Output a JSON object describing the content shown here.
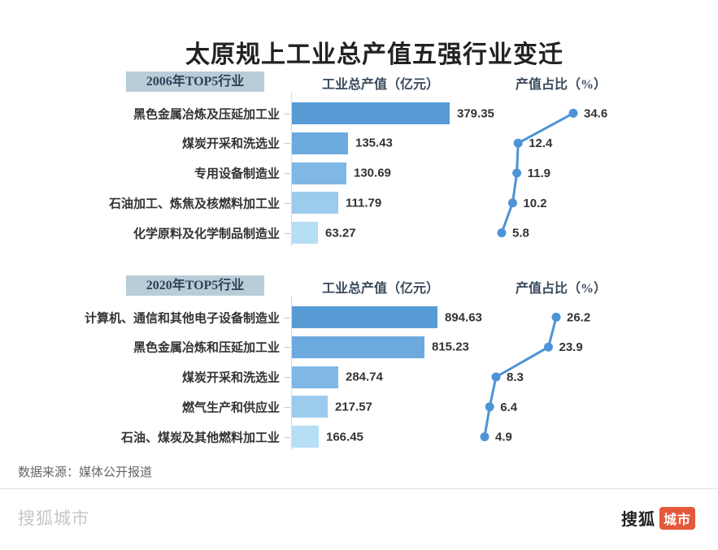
{
  "title": "太原规上工业总产值五强行业变迁",
  "columns": {
    "value": "工业总产值（亿元）",
    "share": "产值占比（%）"
  },
  "chart_data": [
    {
      "type": "bar",
      "group": "2006年TOP5行业",
      "value_axis_label": "工业总产值（亿元）",
      "share_axis_label": "产值占比（%）",
      "categories": [
        "黑色金属冶炼及压延加工业",
        "煤炭开采和洗选业",
        "专用设备制造业",
        "石油加工、炼焦及核燃料加工业",
        "化学原料及化学制品制造业"
      ],
      "values": [
        379.35,
        135.43,
        130.69,
        111.79,
        63.27
      ],
      "share_pct": [
        34.6,
        12.4,
        11.9,
        10.2,
        5.8
      ]
    },
    {
      "type": "bar",
      "group": "2020年TOP5行业",
      "value_axis_label": "工业总产值（亿元）",
      "share_axis_label": "产值占比（%）",
      "categories": [
        "计算机、通信和其他电子设备制造业",
        "黑色金属冶炼和压延加工业",
        "煤炭开采和洗选业",
        "燃气生产和供应业",
        "石油、煤炭及其他燃料加工业"
      ],
      "values": [
        894.63,
        815.23,
        284.74,
        217.57,
        166.45
      ],
      "share_pct": [
        26.2,
        23.9,
        8.3,
        6.4,
        4.9
      ]
    }
  ],
  "footer": {
    "source": "数据来源：媒体公开报道",
    "watermark": "搜狐城市",
    "brand": "搜狐",
    "brand_badge": "城市"
  },
  "colors": {
    "bar_ramp": [
      "#579bd5",
      "#6caade",
      "#7fb8e4",
      "#9ccbee",
      "#b6def5"
    ],
    "line": "#4d94d6",
    "badge_bg": "#b9cdd9",
    "badge_text": "#2c4257",
    "header_text": "#3a4a5c",
    "brand_orange": "#e4583b"
  }
}
